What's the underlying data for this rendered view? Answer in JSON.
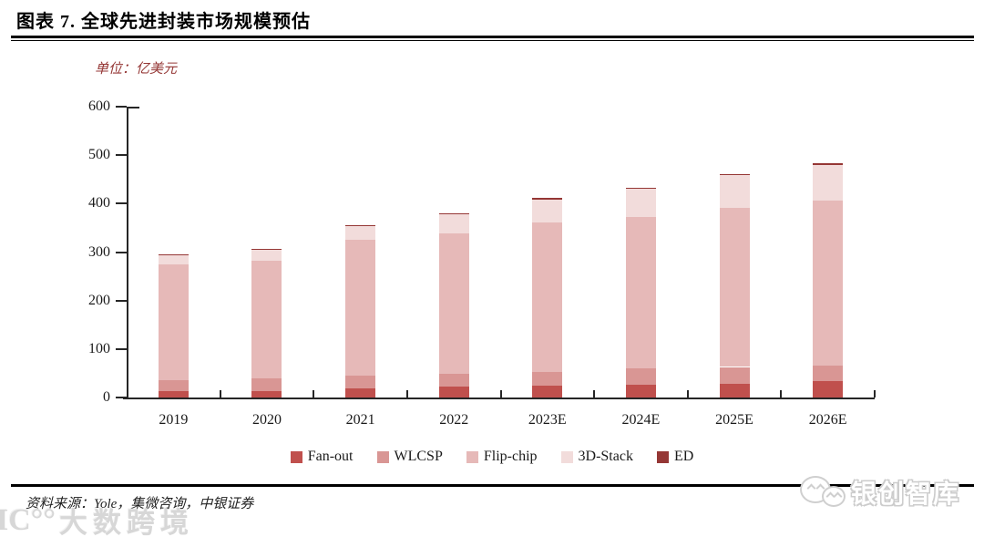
{
  "figure": {
    "title": "图表 7. 全球先进封装市场规模预估",
    "unit_label": "单位：亿美元",
    "source_label": "资料来源：Yole，集微咨询，中银证券"
  },
  "watermarks": {
    "bottom_left_icon": "IC°°",
    "bottom_left_text": "大数跨境",
    "bottom_right_icon": "wechat-bubbles",
    "bottom_right_text": "银创智库"
  },
  "chart_data": {
    "type": "bar",
    "stacked": true,
    "title": "全球先进封装市场规模预估",
    "unit": "亿美元",
    "xlabel": "",
    "ylabel": "",
    "ylim": [
      0,
      600
    ],
    "yticks": [
      0,
      100,
      200,
      300,
      400,
      500,
      600
    ],
    "grid": false,
    "legend_position": "bottom",
    "categories": [
      "2019",
      "2020",
      "2021",
      "2022",
      "2023E",
      "2024E",
      "2025E",
      "2026E"
    ],
    "series": [
      {
        "name": "Fan-out",
        "color": "#C0504D",
        "values": [
          14,
          14,
          18,
          22,
          25,
          27,
          28,
          33
        ]
      },
      {
        "name": "WLCSP",
        "color": "#D99694",
        "values": [
          21,
          25,
          27,
          27,
          27,
          33,
          35,
          32
        ]
      },
      {
        "name": "Flip-chip",
        "color": "#E6B9B8",
        "values": [
          239,
          244,
          280,
          290,
          309,
          312,
          329,
          342
        ]
      },
      {
        "name": "3D-Stack",
        "color": "#F2DCDB",
        "values": [
          21,
          23,
          28,
          40,
          48,
          59,
          67,
          73
        ]
      },
      {
        "name": "ED",
        "color": "#953735",
        "values": [
          1,
          1,
          2,
          1,
          2,
          2,
          2,
          3
        ]
      }
    ],
    "totals_approx": [
      296,
      307,
      355,
      380,
      411,
      433,
      461,
      483
    ]
  }
}
